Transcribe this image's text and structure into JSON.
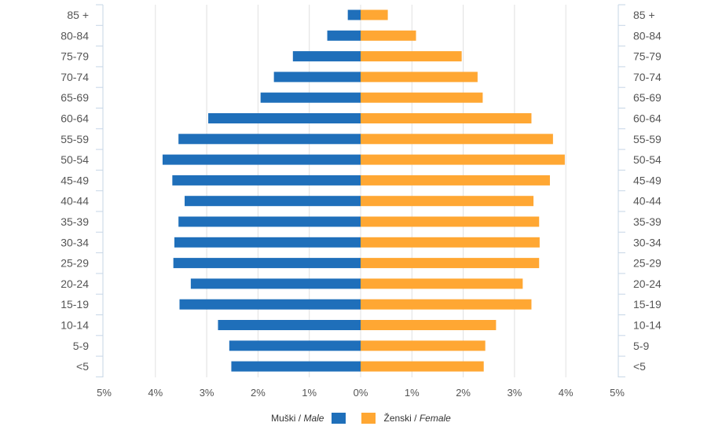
{
  "chart_data": {
    "type": "bar",
    "orientation": "horizontal-population-pyramid",
    "categories": [
      "85 +",
      "80-84",
      "75-79",
      "70-74",
      "65-69",
      "60-64",
      "55-59",
      "50-54",
      "45-49",
      "40-44",
      "35-39",
      "30-34",
      "25-29",
      "20-24",
      "15-19",
      "10-14",
      "5-9",
      "<5"
    ],
    "series": [
      {
        "name": "Muški / Male",
        "label_plain": "Muški / ",
        "label_italic": "Male",
        "color": "#1f6fba",
        "side": "left",
        "values": [
          0.25,
          0.65,
          1.32,
          1.69,
          1.95,
          2.97,
          3.55,
          3.86,
          3.67,
          3.43,
          3.55,
          3.63,
          3.65,
          3.31,
          3.53,
          2.78,
          2.56,
          2.52
        ]
      },
      {
        "name": "Ženski / Female",
        "label_plain": "Ženski / ",
        "label_italic": "Female",
        "color": "#ffa733",
        "side": "right",
        "values": [
          0.53,
          1.08,
          1.97,
          2.28,
          2.38,
          3.33,
          3.75,
          3.98,
          3.69,
          3.37,
          3.48,
          3.49,
          3.48,
          3.16,
          3.33,
          2.64,
          2.43,
          2.4
        ]
      }
    ],
    "xlim": [
      -5,
      5
    ],
    "x_ticks": [
      -5,
      -4,
      -3,
      -2,
      -1,
      0,
      1,
      2,
      3,
      4,
      5
    ],
    "x_tick_labels": [
      "5%",
      "4%",
      "3%",
      "2%",
      "1%",
      "0%",
      "1%",
      "2%",
      "3%",
      "4%",
      "5%"
    ],
    "grid": true,
    "legend_position": "bottom-center"
  },
  "colors": {
    "male": "#1f6fba",
    "female": "#ffa733",
    "grid": "#e0e0e0",
    "axis": "#c6d6e6"
  }
}
